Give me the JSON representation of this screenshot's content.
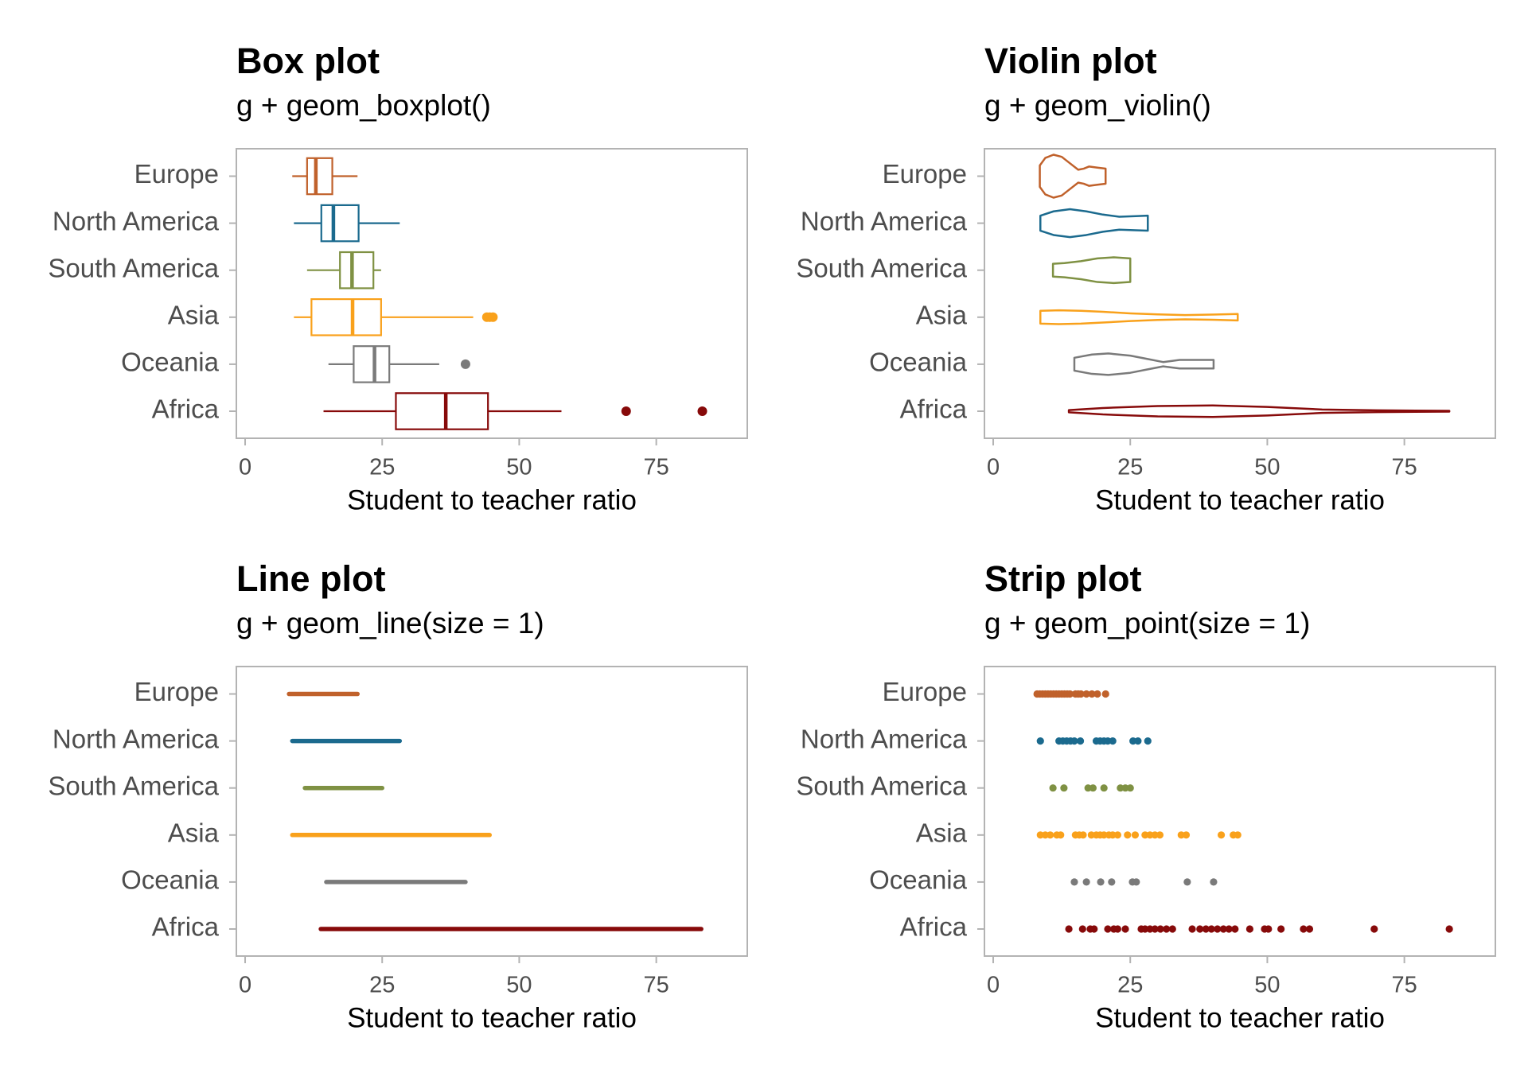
{
  "chart_data": [
    {
      "type": "box",
      "title": "Box plot",
      "subtitle": "g + geom_boxplot()",
      "xlabel": "Student to teacher ratio",
      "categories": [
        "Europe",
        "North America",
        "South America",
        "Asia",
        "Oceania",
        "Africa"
      ],
      "colors": [
        "#c0612b",
        "#1b6a8e",
        "#7f9143",
        "#f9a11b",
        "#7a7a7a",
        "#870a0a"
      ],
      "xlim": [
        -1.6,
        91.6
      ],
      "xticks": [
        0,
        25,
        50,
        75
      ],
      "boxes": [
        {
          "min": 8.6,
          "q1": 11.3,
          "median": 12.9,
          "q3": 15.9,
          "max": 20.5,
          "outliers": []
        },
        {
          "min": 8.9,
          "q1": 13.9,
          "median": 16.1,
          "q3": 20.7,
          "max": 28.2,
          "outliers": []
        },
        {
          "min": 11.3,
          "q1": 17.3,
          "median": 19.5,
          "q3": 23.4,
          "max": 24.8,
          "outliers": []
        },
        {
          "min": 8.9,
          "q1": 12.1,
          "median": 19.6,
          "q3": 24.8,
          "max": 41.6,
          "outliers": [
            44.1,
            44.6,
            45.2
          ]
        },
        {
          "min": 15.2,
          "q1": 19.8,
          "median": 23.6,
          "q3": 26.3,
          "max": 35.4,
          "outliers": [
            40.2
          ]
        },
        {
          "min": 14.3,
          "q1": 27.5,
          "median": 36.6,
          "q3": 44.3,
          "max": 57.7,
          "outliers": [
            69.5,
            83.4
          ]
        }
      ]
    },
    {
      "type": "violin",
      "title": "Violin plot",
      "subtitle": "g + geom_violin()",
      "xlabel": "Student to teacher ratio",
      "categories": [
        "Europe",
        "North America",
        "South America",
        "Asia",
        "Oceania",
        "Africa"
      ],
      "colors": [
        "#c0612b",
        "#1b6a8e",
        "#7f9143",
        "#f9a11b",
        "#7a7a7a",
        "#870a0a"
      ],
      "xlim": [
        -1.6,
        91.6
      ],
      "xticks": [
        0,
        25,
        50,
        75
      ],
      "density": [
        {
          "x": [
            8.5,
            9.5,
            11,
            12.5,
            14,
            15.5,
            16.5,
            17.5,
            19,
            20.5
          ],
          "width": [
            0.5,
            0.85,
            1,
            0.9,
            0.6,
            0.3,
            0.35,
            0.45,
            0.4,
            0.35
          ]
        },
        {
          "x": [
            8.6,
            11,
            14,
            17,
            20,
            23,
            26,
            28.2
          ],
          "width": [
            0.35,
            0.55,
            0.65,
            0.55,
            0.4,
            0.3,
            0.33,
            0.35
          ]
        },
        {
          "x": [
            10.9,
            13,
            16,
            19,
            22,
            25
          ],
          "width": [
            0.3,
            0.33,
            0.42,
            0.55,
            0.6,
            0.55
          ]
        },
        {
          "x": [
            8.6,
            12,
            16,
            20,
            25,
            30,
            35,
            40,
            44.6
          ],
          "width": [
            0.3,
            0.32,
            0.3,
            0.25,
            0.18,
            0.13,
            0.1,
            0.12,
            0.15
          ]
        },
        {
          "x": [
            14.8,
            18,
            21,
            25,
            28,
            31,
            34,
            40.2
          ],
          "width": [
            0.3,
            0.45,
            0.5,
            0.4,
            0.25,
            0.1,
            0.2,
            0.2
          ]
        },
        {
          "x": [
            13.8,
            20,
            30,
            40,
            50,
            60,
            70,
            83.2
          ],
          "width": [
            0.05,
            0.15,
            0.24,
            0.27,
            0.2,
            0.08,
            0.04,
            0.02
          ]
        }
      ]
    },
    {
      "type": "line",
      "title": "Line plot",
      "subtitle": "g + geom_line(size = 1)",
      "xlabel": "Student to teacher ratio",
      "categories": [
        "Europe",
        "North America",
        "South America",
        "Asia",
        "Oceania",
        "Africa"
      ],
      "colors": [
        "#c0612b",
        "#1b6a8e",
        "#7f9143",
        "#f9a11b",
        "#7a7a7a",
        "#870a0a"
      ],
      "xlim": [
        -1.6,
        91.6
      ],
      "xticks": [
        0,
        25,
        50,
        75
      ],
      "values": [
        [
          8,
          8.5,
          9,
          9.5,
          10,
          10.5,
          11,
          11.5,
          12,
          12.5,
          13,
          13.5,
          14,
          15,
          15.5,
          16,
          17,
          18,
          19,
          20.5
        ],
        [
          8.6,
          12,
          12.7,
          13.4,
          14.1,
          14.8,
          15.9,
          18.8,
          19.5,
          20.2,
          20.9,
          21.8,
          25.5,
          26.4,
          28.2
        ],
        [
          10.9,
          12.9,
          17.3,
          18.2,
          20.2,
          23.2,
          24.1,
          25
        ],
        [
          8.6,
          9.5,
          10.4,
          11.6,
          12.3,
          15,
          15.7,
          16.4,
          17.9,
          18.8,
          19.5,
          20.2,
          21.1,
          21.8,
          22.7,
          24.5,
          25.9,
          27.7,
          28.6,
          29.5,
          30.4,
          34.3,
          35.2,
          41.6,
          43.8,
          44.6
        ],
        [
          14.8,
          17,
          19.6,
          21.6,
          25.4,
          26.1,
          35.4,
          40.2
        ],
        [
          13.8,
          16.3,
          17.7,
          18.4,
          20.9,
          22,
          22.7,
          24.1,
          27,
          27.7,
          28.6,
          29.5,
          30.5,
          31.6,
          32.7,
          36.3,
          37.7,
          38.8,
          39.8,
          40.9,
          42,
          43,
          44.1,
          46.8,
          49.5,
          50.2,
          52.5,
          56.6,
          57.7,
          69.5,
          83.2
        ]
      ]
    },
    {
      "type": "strip",
      "title": "Strip plot",
      "subtitle": "g + geom_point(size = 1)",
      "xlabel": "Student to teacher ratio",
      "categories": [
        "Europe",
        "North America",
        "South America",
        "Asia",
        "Oceania",
        "Africa"
      ],
      "colors": [
        "#c0612b",
        "#1b6a8e",
        "#7f9143",
        "#f9a11b",
        "#7a7a7a",
        "#870a0a"
      ],
      "xlim": [
        -1.6,
        91.6
      ],
      "xticks": [
        0,
        25,
        50,
        75
      ],
      "values": [
        [
          8,
          8.5,
          9,
          9.5,
          10,
          10.5,
          11,
          11.5,
          12,
          12.5,
          13,
          13.5,
          14,
          15,
          15.5,
          16,
          17,
          18,
          19,
          20.5
        ],
        [
          8.6,
          12,
          12.7,
          13.4,
          14.1,
          14.8,
          15.9,
          18.8,
          19.5,
          20.2,
          20.9,
          21.8,
          25.5,
          26.4,
          28.2
        ],
        [
          10.9,
          12.9,
          17.3,
          18.2,
          20.2,
          23.2,
          24.1,
          25
        ],
        [
          8.6,
          9.5,
          10.4,
          11.6,
          12.3,
          15,
          15.7,
          16.4,
          17.9,
          18.8,
          19.5,
          20.2,
          21.1,
          21.8,
          22.7,
          24.5,
          25.9,
          27.7,
          28.6,
          29.5,
          30.4,
          34.3,
          35.2,
          41.6,
          43.8,
          44.6
        ],
        [
          14.8,
          17,
          19.6,
          21.6,
          25.4,
          26.1,
          35.4,
          40.2
        ],
        [
          13.8,
          16.3,
          17.7,
          18.4,
          20.9,
          22,
          22.7,
          24.1,
          27,
          27.7,
          28.6,
          29.5,
          30.5,
          31.6,
          32.7,
          36.3,
          37.7,
          38.8,
          39.8,
          40.9,
          42,
          43,
          44.1,
          46.8,
          49.5,
          50.2,
          52.5,
          56.6,
          57.7,
          69.5,
          83.2
        ]
      ]
    }
  ]
}
